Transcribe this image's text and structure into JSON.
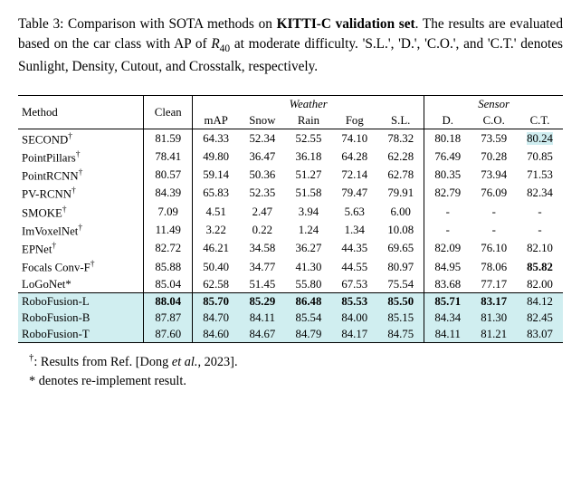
{
  "caption": {
    "prefix": "Table 3: Comparison with SOTA methods on ",
    "boldpart": "KITTI-C validation set",
    "rest": ". The results are evaluated based on the car class with AP of ",
    "r40": "R",
    "r40sub": "40",
    "tail": " at moderate difficulty. 'S.L.', 'D.', 'C.O.', and 'C.T.' denotes Sunlight, Density, Cutout, and Crosstalk, respectively."
  },
  "header": {
    "method": "Method",
    "clean": "Clean",
    "weather": "Weather",
    "sensor": "Sensor",
    "cols": [
      "mAP",
      "Snow",
      "Rain",
      "Fog",
      "S.L.",
      "D.",
      "C.O.",
      "C.T."
    ]
  },
  "rows": [
    {
      "name": "SECOND",
      "mark": "†",
      "vals": [
        "81.59",
        "64.33",
        "52.34",
        "52.55",
        "74.10",
        "78.32",
        "80.18",
        "73.59",
        "80.24"
      ],
      "hl": false,
      "bold": [],
      "trailHL": "80.24"
    },
    {
      "name": "PointPillars",
      "mark": "†",
      "vals": [
        "78.41",
        "49.80",
        "36.47",
        "36.18",
        "64.28",
        "62.28",
        "76.49",
        "70.28",
        "70.85"
      ],
      "hl": false,
      "bold": []
    },
    {
      "name": "PointRCNN",
      "mark": "†",
      "vals": [
        "80.57",
        "59.14",
        "50.36",
        "51.27",
        "72.14",
        "62.78",
        "80.35",
        "73.94",
        "71.53"
      ],
      "hl": false,
      "bold": []
    },
    {
      "name": "PV-RCNN",
      "mark": "†",
      "vals": [
        "84.39",
        "65.83",
        "52.35",
        "51.58",
        "79.47",
        "79.91",
        "82.79",
        "76.09",
        "82.34"
      ],
      "hl": false,
      "bold": []
    },
    {
      "name": "SMOKE",
      "mark": "†",
      "vals": [
        "7.09",
        "4.51",
        "2.47",
        "3.94",
        "5.63",
        "6.00",
        "-",
        "-",
        "-"
      ],
      "hl": false,
      "bold": []
    },
    {
      "name": "ImVoxelNet",
      "mark": "†",
      "vals": [
        "11.49",
        "3.22",
        "0.22",
        "1.24",
        "1.34",
        "10.08",
        "-",
        "-",
        "-"
      ],
      "hl": false,
      "bold": []
    },
    {
      "name": "EPNet",
      "mark": "†",
      "vals": [
        "82.72",
        "46.21",
        "34.58",
        "36.27",
        "44.35",
        "69.65",
        "82.09",
        "76.10",
        "82.10"
      ],
      "hl": false,
      "bold": []
    },
    {
      "name": "Focals Conv-F",
      "mark": "†",
      "vals": [
        "85.88",
        "50.40",
        "34.77",
        "41.30",
        "44.55",
        "80.97",
        "84.95",
        "78.06",
        "85.82"
      ],
      "hl": false,
      "bold": [
        8
      ]
    },
    {
      "name": "LoGoNet",
      "mark": "*",
      "vals": [
        "85.04",
        "62.58",
        "51.45",
        "55.80",
        "67.53",
        "75.54",
        "83.68",
        "77.17",
        "82.00"
      ],
      "hl": false,
      "bold": []
    },
    {
      "name": "RoboFusion-L",
      "mark": "",
      "vals": [
        "88.04",
        "85.70",
        "85.29",
        "86.48",
        "85.53",
        "85.50",
        "85.71",
        "83.17",
        "84.12"
      ],
      "hl": true,
      "bold": [
        0,
        1,
        2,
        3,
        4,
        5,
        6,
        7
      ]
    },
    {
      "name": "RoboFusion-B",
      "mark": "",
      "vals": [
        "87.87",
        "84.70",
        "84.11",
        "85.54",
        "84.00",
        "85.15",
        "84.34",
        "81.30",
        "82.45"
      ],
      "hl": true,
      "bold": []
    },
    {
      "name": "RoboFusion-T",
      "mark": "",
      "vals": [
        "87.60",
        "84.60",
        "84.67",
        "84.79",
        "84.17",
        "84.75",
        "84.11",
        "81.21",
        "83.07"
      ],
      "hl": true,
      "bold": []
    }
  ],
  "footnotes": {
    "line1pre": ": Results from Ref. [Dong ",
    "line1ital": "et al.",
    "line1post": ", 2023].",
    "line2": "* denotes re-implement result."
  },
  "style": {
    "highlight_color": "#d0eef0",
    "trail_highlight_color": "#cfedf0"
  }
}
